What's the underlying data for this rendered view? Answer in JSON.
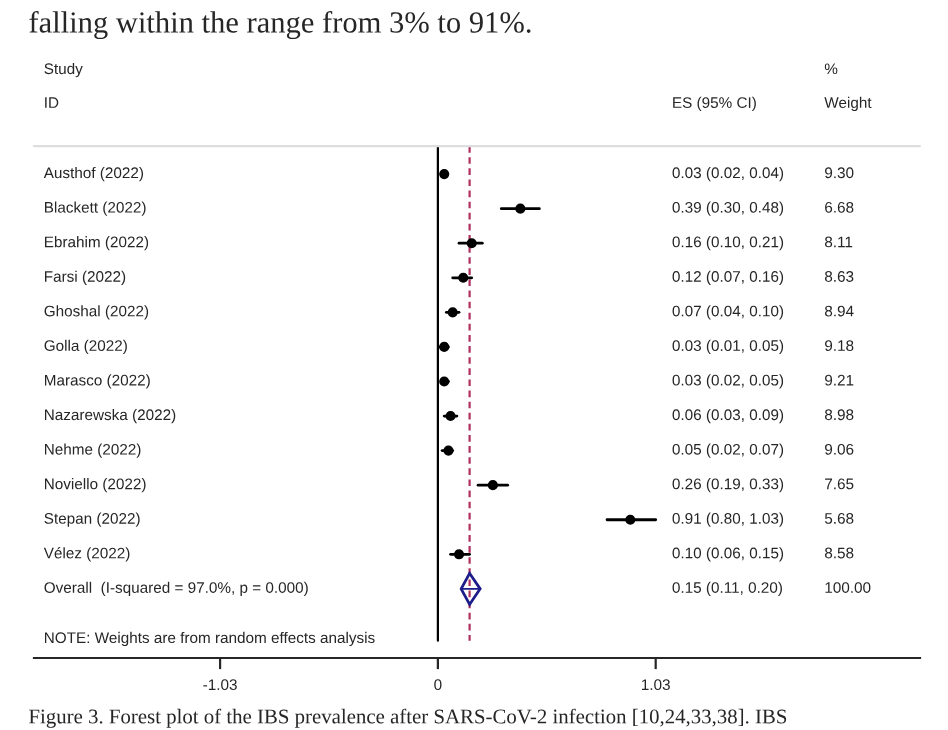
{
  "chart_data": {
    "type": "scatter",
    "orientation": "horizontal",
    "categories": [
      "Austhof (2022)",
      "Blackett (2022)",
      "Ebrahim (2022)",
      "Farsi (2022)",
      "Ghoshal (2022)",
      "Golla (2022)",
      "Marasco (2022)",
      "Nazarewska (2022)",
      "Nehme (2022)",
      "Noviello (2022)",
      "Stepan (2022)",
      "Vélez (2022)",
      "Overall  (I-squared = 97.0%, p = 0.000)"
    ],
    "series": [
      {
        "color": "#000000",
        "marker": "circle",
        "values": [
          0.03,
          0.39,
          0.16,
          0.12,
          0.07,
          0.03,
          0.03,
          0.06,
          0.05,
          0.26,
          0.91,
          0.1,
          null
        ],
        "errors": [
          [
            0.02,
            0.04
          ],
          [
            0.3,
            0.48
          ],
          [
            0.1,
            0.21
          ],
          [
            0.07,
            0.16
          ],
          [
            0.04,
            0.1
          ],
          [
            0.01,
            0.05
          ],
          [
            0.02,
            0.05
          ],
          [
            0.03,
            0.09
          ],
          [
            0.02,
            0.07
          ],
          [
            0.19,
            0.33
          ],
          [
            0.8,
            1.03
          ],
          [
            0.06,
            0.15
          ],
          null
        ]
      },
      {
        "color": "#1c1c8a",
        "marker": "diamond",
        "values": [
          null,
          null,
          null,
          null,
          null,
          null,
          null,
          null,
          null,
          null,
          null,
          null,
          0.15
        ],
        "errors": [
          null,
          null,
          null,
          null,
          null,
          null,
          null,
          null,
          null,
          null,
          null,
          null,
          [
            0.11,
            0.2
          ]
        ]
      }
    ],
    "xlim": [
      -1.91,
      2.28
    ],
    "xticks": [
      -1.03,
      0,
      1.03
    ],
    "ref_lines": [
      {
        "axis": "x",
        "value": 0,
        "color": "#000000",
        "line_style": "solid"
      },
      {
        "axis": "x",
        "value": 0.15,
        "color": "#b03060",
        "line_style": "dashed"
      }
    ],
    "grid": false,
    "legend": false,
    "annotations": [
      "falling within the range from 3% to 91%.",
      "Figure 3. Forest plot of the IBS prevalence after SARS-CoV-2 infection [10,24,33,38]. IBS",
      "Study",
      "ID",
      "ES (95% CI)",
      "%",
      "Weight",
      "NOTE: Weights are from random effects analysis",
      "9.30",
      "6.68",
      "8.11",
      "8.63",
      "8.94",
      "9.18",
      "9.21",
      "8.98",
      "9.06",
      "7.65",
      "5.68",
      "8.58",
      "100.00",
      "0.03 (0.02, 0.04)",
      "0.39 (0.30, 0.48)",
      "0.16 (0.10, 0.21)",
      "0.12 (0.07, 0.16)",
      "0.07 (0.04, 0.10)",
      "0.03 (0.01, 0.05)",
      "0.03 (0.02, 0.05)",
      "0.06 (0.03, 0.09)",
      "0.05 (0.02, 0.07)",
      "0.26 (0.19, 0.33)",
      "0.91 (0.80, 1.03)",
      "0.10 (0.06, 0.15)",
      "0.15 (0.11, 0.20)"
    ]
  }
}
